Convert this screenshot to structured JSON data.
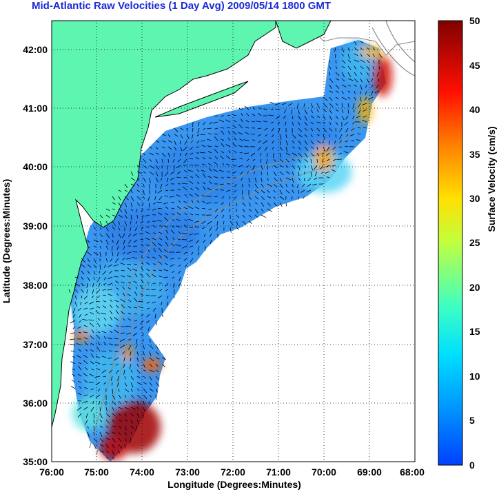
{
  "title": "Mid-Atlantic Raw Velocities (1 Day Avg) 2009/05/14 1800 GMT",
  "map": {
    "xlabel": "Longitude (Degrees:Minutes)",
    "ylabel": "Latitude (Degrees:Minutes)",
    "x_ticks": [
      "76:00",
      "75:00",
      "74:00",
      "73:00",
      "72:00",
      "71:00",
      "70:00",
      "69:00",
      "68:00"
    ],
    "y_ticks": [
      "42:00",
      "41:00",
      "40:00",
      "39:00",
      "38:00",
      "37:00",
      "36:00",
      "35:00"
    ],
    "land_color": "#5ef5b0",
    "grid": "dotted"
  },
  "colorbar": {
    "label": "Surface Velocity (cm/s)",
    "ticks": [
      "50",
      "45",
      "40",
      "35",
      "30",
      "25",
      "20",
      "15",
      "10",
      "5",
      "0"
    ],
    "colormap": "jet"
  }
}
